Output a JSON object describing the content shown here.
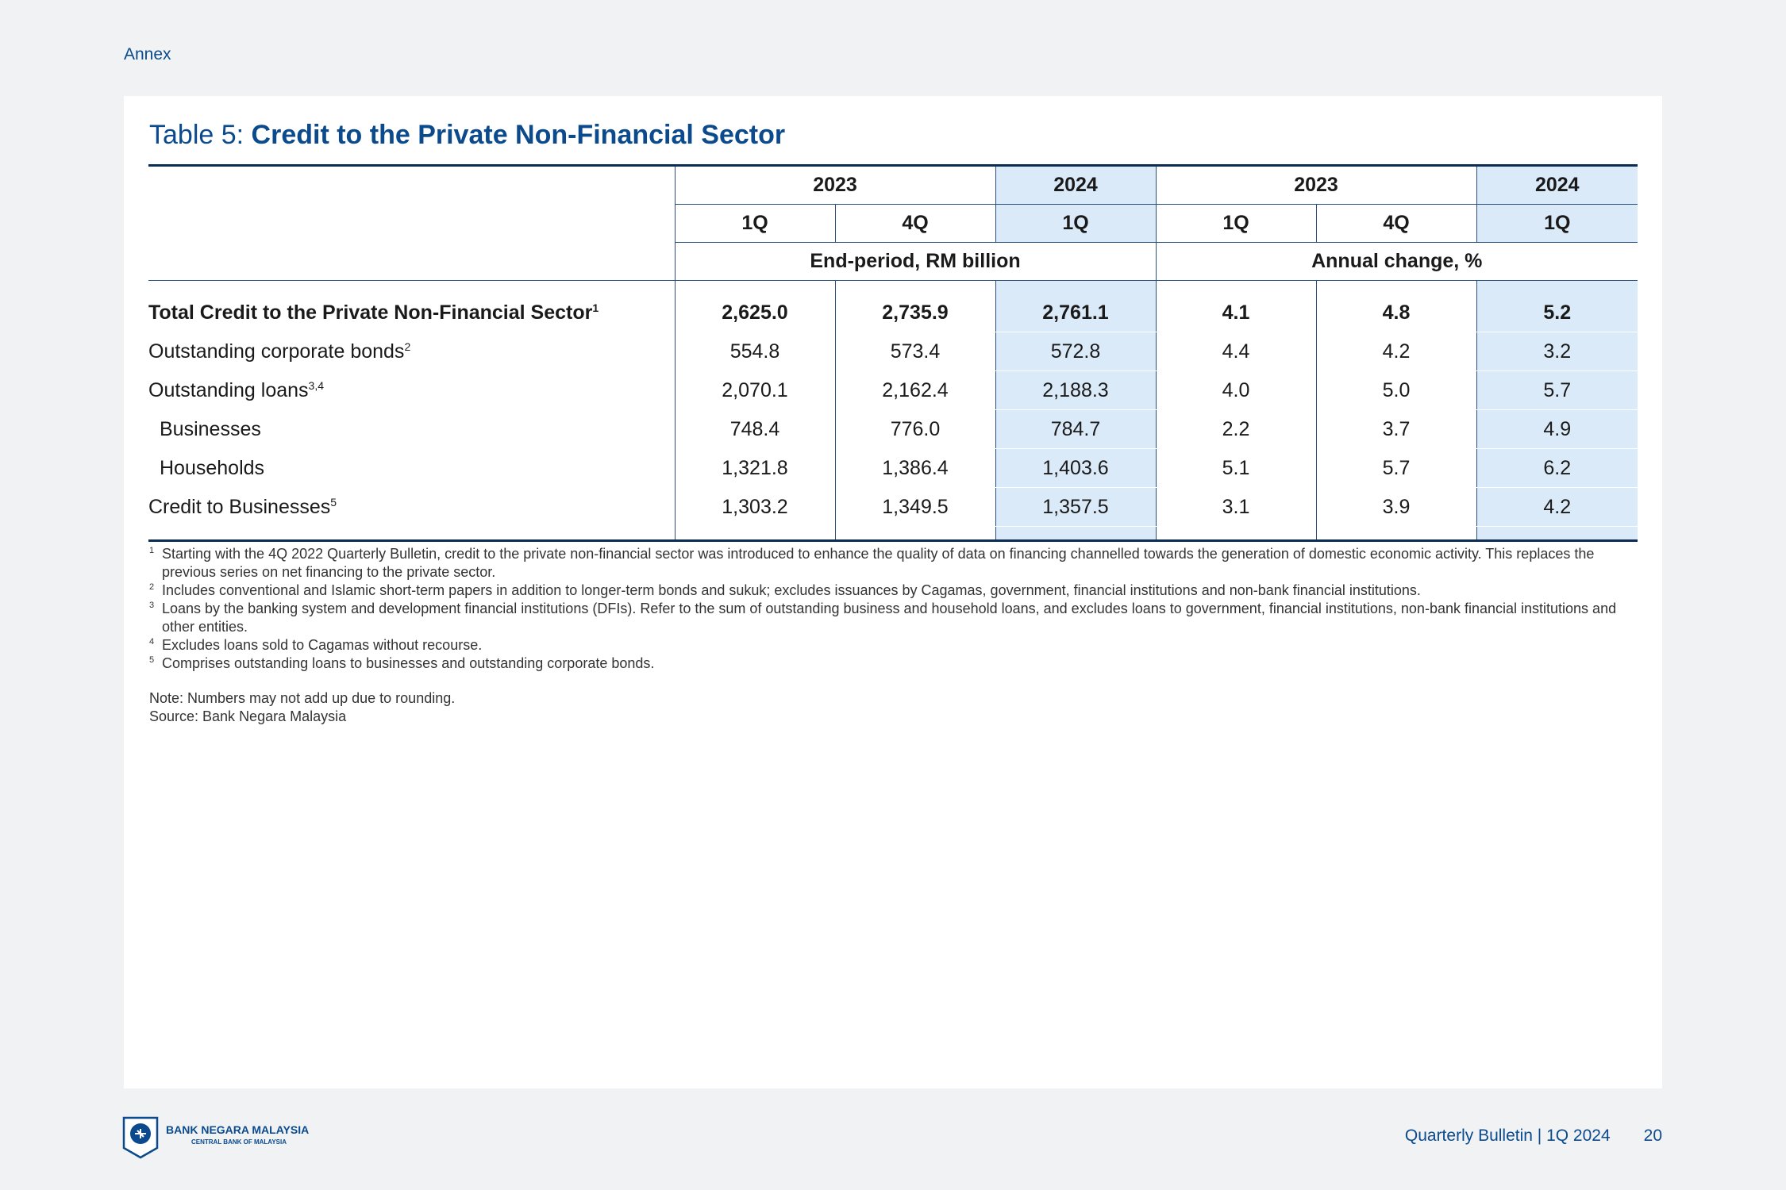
{
  "header": {
    "section": "Annex"
  },
  "table": {
    "title_prefix": "Table 5: ",
    "title_main": "Credit to the Private Non-Financial Sector",
    "year_headers": [
      "2023",
      "2024",
      "2023",
      "2024"
    ],
    "quarter_headers": [
      "1Q",
      "4Q",
      "1Q",
      "1Q",
      "4Q",
      "1Q"
    ],
    "unit_headers": [
      "End-period, RM billion",
      "Annual change, %"
    ],
    "rows": [
      {
        "label": "Total Credit to the Private Non-Financial Sector",
        "sup": "1",
        "values": [
          "2,625.0",
          "2,735.9",
          "2,761.1",
          "4.1",
          "4.8",
          "5.2"
        ]
      },
      {
        "label": "Outstanding corporate bonds",
        "sup": "2",
        "values": [
          "554.8",
          "573.4",
          "572.8",
          "4.4",
          "4.2",
          "3.2"
        ]
      },
      {
        "label": "Outstanding loans",
        "sup": "3,4",
        "values": [
          "2,070.1",
          "2,162.4",
          "2,188.3",
          "4.0",
          "5.0",
          "5.7"
        ]
      },
      {
        "label": "Businesses",
        "values": [
          "748.4",
          "776.0",
          "784.7",
          "2.2",
          "3.7",
          "4.9"
        ]
      },
      {
        "label": "Households",
        "values": [
          "1,321.8",
          "1,386.4",
          "1,403.6",
          "5.1",
          "5.7",
          "6.2"
        ]
      },
      {
        "label": "Credit to Businesses",
        "sup": "5",
        "values": [
          "1,303.2",
          "1,349.5",
          "1,357.5",
          "3.1",
          "3.9",
          "4.2"
        ]
      }
    ],
    "footnotes": [
      {
        "n": "1",
        "text": "Starting with the 4Q 2022 Quarterly Bulletin, credit to the private non-financial sector was introduced to enhance the quality of data on financing channelled towards the generation of domestic economic activity. This replaces the previous series on net financing to the private sector."
      },
      {
        "n": "2",
        "text": "Includes conventional and Islamic short-term papers in addition to longer-term bonds and sukuk; excludes issuances by Cagamas, government, financial institutions and non-bank financial institutions."
      },
      {
        "n": "3",
        "text": "Loans by the banking system and development financial institutions (DFIs). Refer to the sum of outstanding business and household loans, and excludes loans to government, financial institutions, non-bank financial institutions and other entities."
      },
      {
        "n": "4",
        "text": "Excludes loans sold to Cagamas without recourse."
      },
      {
        "n": "5",
        "text": "Comprises outstanding loans to businesses and outstanding corporate bonds."
      }
    ],
    "note": "Note: Numbers may not add up due to rounding.",
    "source": "Source: Bank Negara Malaysia"
  },
  "footer": {
    "logo_name": "BANK NEGARA MALAYSIA",
    "logo_sub": "CENTRAL BANK OF MALAYSIA",
    "logo_icon": "bnm-crest-icon",
    "publication": "Quarterly Bulletin | 1Q 2024",
    "page": "20"
  },
  "colors": {
    "brand_blue": "#0b4a8c",
    "highlight": "#dbeaf8",
    "rule": "#0b2d55"
  }
}
